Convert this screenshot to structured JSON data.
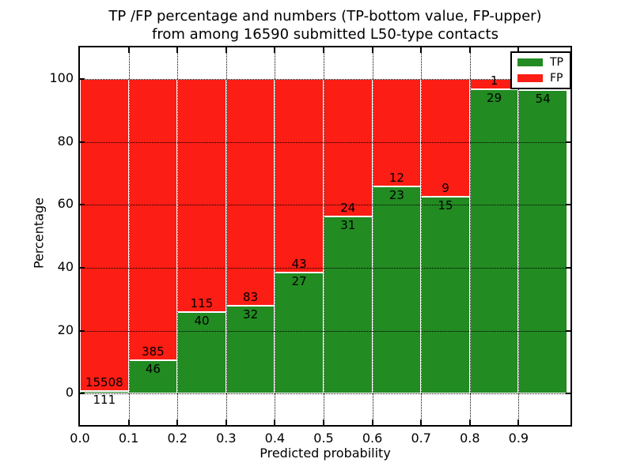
{
  "chart_data": {
    "type": "bar",
    "stacked": true,
    "title_line1": "TP /FP percentage and numbers (TP-bottom value, FP-upper)",
    "title_line2": "from among 16590 submitted L50-type contacts",
    "xlabel": "Predicted probability",
    "ylabel": "Percentage",
    "ylim": [
      -10,
      110
    ],
    "xlim": [
      0.0,
      1.0
    ],
    "bin_width": 0.1,
    "grid": "dotted, both axes, drawn over bars",
    "y_ticks": [
      "0",
      "20",
      "40",
      "60",
      "80",
      "100"
    ],
    "y_tick_values": [
      0,
      20,
      40,
      60,
      80,
      100
    ],
    "x_ticks": [
      "0.0",
      "0.1",
      "0.2",
      "0.3",
      "0.4",
      "0.5",
      "0.6",
      "0.7",
      "0.8",
      "0.9"
    ],
    "colors": {
      "tp": "#228b22",
      "fp": "#fc1d14",
      "grid": "#000000",
      "frame": "#000000",
      "bar_edge": "#ffffff"
    },
    "legend": {
      "position": "upper right",
      "entries": [
        {
          "key": "tp",
          "label": "TP",
          "color": "#228b22"
        },
        {
          "key": "fp",
          "label": "FP",
          "color": "#fc1d14"
        }
      ]
    },
    "bars": [
      {
        "bin": "0.0-0.1",
        "tp": 111,
        "fp": 15508,
        "tp_pct": 0.71,
        "tp_label": "111",
        "fp_label": "15508"
      },
      {
        "bin": "0.1-0.2",
        "tp": 46,
        "fp": 385,
        "tp_pct": 10.67,
        "tp_label": "46",
        "fp_label": "385"
      },
      {
        "bin": "0.2-0.3",
        "tp": 40,
        "fp": 115,
        "tp_pct": 25.81,
        "tp_label": "40",
        "fp_label": "115"
      },
      {
        "bin": "0.3-0.4",
        "tp": 32,
        "fp": 83,
        "tp_pct": 27.83,
        "tp_label": "32",
        "fp_label": "83"
      },
      {
        "bin": "0.4-0.5",
        "tp": 27,
        "fp": 43,
        "tp_pct": 38.57,
        "tp_label": "27",
        "fp_label": "43"
      },
      {
        "bin": "0.5-0.6",
        "tp": 31,
        "fp": 24,
        "tp_pct": 56.36,
        "tp_label": "31",
        "fp_label": "24"
      },
      {
        "bin": "0.6-0.7",
        "tp": 23,
        "fp": 12,
        "tp_pct": 65.71,
        "tp_label": "23",
        "fp_label": "12"
      },
      {
        "bin": "0.7-0.8",
        "tp": 15,
        "fp": 9,
        "tp_pct": 62.5,
        "tp_label": "15",
        "fp_label": "9"
      },
      {
        "bin": "0.8-0.9",
        "tp": 29,
        "fp": 1,
        "tp_pct": 96.67,
        "tp_label": "29",
        "fp_label": "1"
      },
      {
        "bin": "0.9-1.0",
        "tp": 54,
        "fp": null,
        "tp_pct": 96.43,
        "tp_label": "54",
        "fp_label": ""
      }
    ]
  }
}
